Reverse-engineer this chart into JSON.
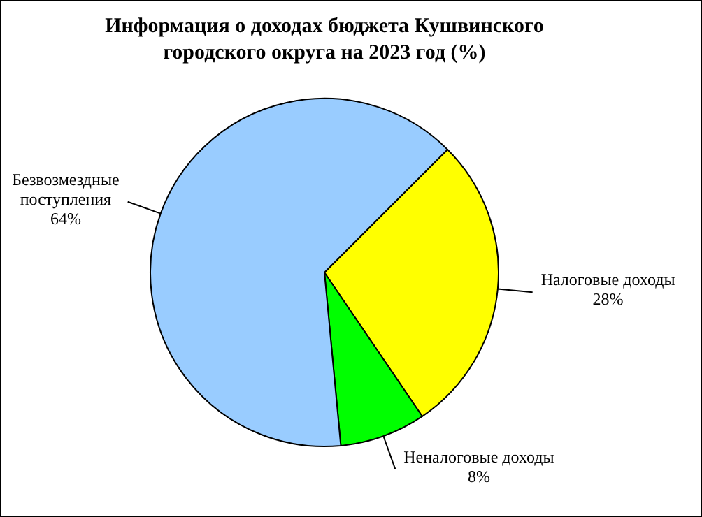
{
  "chart_data": {
    "type": "pie",
    "title": "Информация о доходах бюджета Кушвинского городского округа на 2023 год (%)",
    "categories": [
      "Налоговые доходы",
      "Неналоговые доходы",
      "Безвозмездные поступления"
    ],
    "values": [
      28,
      8,
      64
    ],
    "colors": [
      "#ffff00",
      "#00ff00",
      "#99ccff"
    ],
    "value_labels": [
      "28%",
      "8%",
      "64%"
    ],
    "legend": false
  }
}
